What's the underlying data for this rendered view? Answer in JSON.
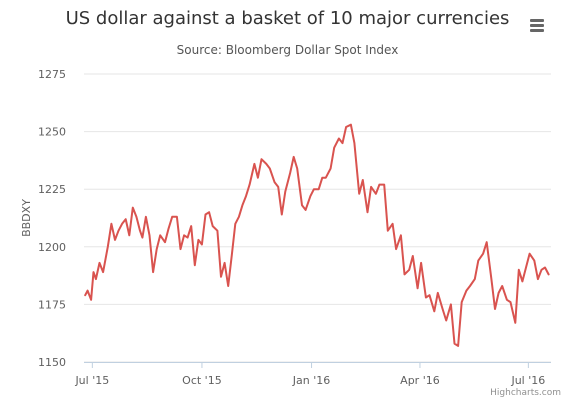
{
  "header": {
    "title": "US dollar against a basket of 10 major currencies",
    "subtitle": "Source: Bloomberg Dollar Spot Index",
    "menu_icon": "hamburger-menu-icon"
  },
  "credits": "Highcharts.com",
  "chart_data": {
    "type": "line",
    "title": "US dollar against a basket of 10 major currencies",
    "subtitle": "Source: Bloomberg Dollar Spot Index",
    "ylabel": "BBDXY",
    "xlabel": "",
    "ylim": [
      1150,
      1275
    ],
    "yticks": [
      "1150",
      "1175",
      "1200",
      "1225",
      "1250",
      "1275"
    ],
    "xlim": [
      "2015-06-24",
      "2016-07-20"
    ],
    "xticks": [
      {
        "date": "2015-07-01",
        "label": "Jul '15"
      },
      {
        "date": "2015-10-01",
        "label": "Oct '15"
      },
      {
        "date": "2016-01-01",
        "label": "Jan '16"
      },
      {
        "date": "2016-04-01",
        "label": "Apr '16"
      },
      {
        "date": "2016-07-01",
        "label": "Jul '16"
      }
    ],
    "grid": true,
    "legend": "none",
    "color": "#d9534f",
    "series": [
      {
        "x": [
          "2015-06-25",
          "2015-06-27",
          "2015-06-30",
          "2015-07-02",
          "2015-07-04",
          "2015-07-07",
          "2015-07-10",
          "2015-07-14",
          "2015-07-17",
          "2015-07-20",
          "2015-07-23",
          "2015-07-26",
          "2015-07-29",
          "2015-08-01",
          "2015-08-04",
          "2015-08-07",
          "2015-08-10",
          "2015-08-12",
          "2015-08-15",
          "2015-08-18",
          "2015-08-21",
          "2015-08-24",
          "2015-08-27",
          "2015-08-31",
          "2015-09-03",
          "2015-09-06",
          "2015-09-10",
          "2015-09-13",
          "2015-09-16",
          "2015-09-19",
          "2015-09-22",
          "2015-09-25",
          "2015-09-28",
          "2015-10-01",
          "2015-10-04",
          "2015-10-07",
          "2015-10-10",
          "2015-10-14",
          "2015-10-17",
          "2015-10-20",
          "2015-10-23",
          "2015-10-26",
          "2015-10-29",
          "2015-11-01",
          "2015-11-04",
          "2015-11-07",
          "2015-11-10",
          "2015-11-14",
          "2015-11-17",
          "2015-11-20",
          "2015-11-24",
          "2015-11-27",
          "2015-12-01",
          "2015-12-04",
          "2015-12-07",
          "2015-12-10",
          "2015-12-14",
          "2015-12-17",
          "2015-12-20",
          "2015-12-24",
          "2015-12-27",
          "2015-12-31",
          "2016-01-03",
          "2016-01-07",
          "2016-01-10",
          "2016-01-13",
          "2016-01-17",
          "2016-01-20",
          "2016-01-24",
          "2016-01-27",
          "2016-01-30",
          "2016-02-03",
          "2016-02-06",
          "2016-02-10",
          "2016-02-13",
          "2016-02-17",
          "2016-02-20",
          "2016-02-24",
          "2016-02-27",
          "2016-03-02",
          "2016-03-05",
          "2016-03-09",
          "2016-03-12",
          "2016-03-16",
          "2016-03-19",
          "2016-03-23",
          "2016-03-26",
          "2016-03-30",
          "2016-04-02",
          "2016-04-06",
          "2016-04-09",
          "2016-04-13",
          "2016-04-16",
          "2016-04-20",
          "2016-04-23",
          "2016-04-27",
          "2016-04-30",
          "2016-05-03",
          "2016-05-06",
          "2016-05-10",
          "2016-05-13",
          "2016-05-17",
          "2016-05-20",
          "2016-05-24",
          "2016-05-27",
          "2016-05-31",
          "2016-06-03",
          "2016-06-06",
          "2016-06-09",
          "2016-06-13",
          "2016-06-16",
          "2016-06-20",
          "2016-06-23",
          "2016-06-26",
          "2016-06-29",
          "2016-07-02",
          "2016-07-06",
          "2016-07-09",
          "2016-07-12",
          "2016-07-15",
          "2016-07-18"
        ],
        "y": [
          1179,
          1181,
          1177,
          1189,
          1186,
          1193,
          1189,
          1200,
          1210,
          1203,
          1207,
          1210,
          1212,
          1205,
          1217,
          1213,
          1207,
          1204,
          1213,
          1205,
          1189,
          1199,
          1205,
          1202,
          1208,
          1213,
          1213,
          1199,
          1205,
          1204,
          1209,
          1192,
          1203,
          1201,
          1214,
          1215,
          1209,
          1207,
          1187,
          1193,
          1183,
          1196,
          1210,
          1213,
          1218,
          1222,
          1227,
          1236,
          1230,
          1238,
          1236,
          1234,
          1228,
          1226,
          1214,
          1224,
          1232,
          1239,
          1234,
          1218,
          1216,
          1222,
          1225,
          1225,
          1230,
          1230,
          1234,
          1243,
          1247,
          1245,
          1252,
          1253,
          1245,
          1223,
          1229,
          1215,
          1226,
          1223,
          1227,
          1227,
          1207,
          1210,
          1199,
          1205,
          1188,
          1190,
          1196,
          1182,
          1193,
          1178,
          1179,
          1172,
          1180,
          1173,
          1168,
          1175,
          1158,
          1157,
          1176,
          1181,
          1183,
          1186,
          1194,
          1197,
          1202,
          1186,
          1173,
          1180,
          1183,
          1177,
          1176,
          1167,
          1190,
          1185,
          1191,
          1197,
          1194,
          1186,
          1190,
          1191,
          1188
        ]
      }
    ]
  }
}
